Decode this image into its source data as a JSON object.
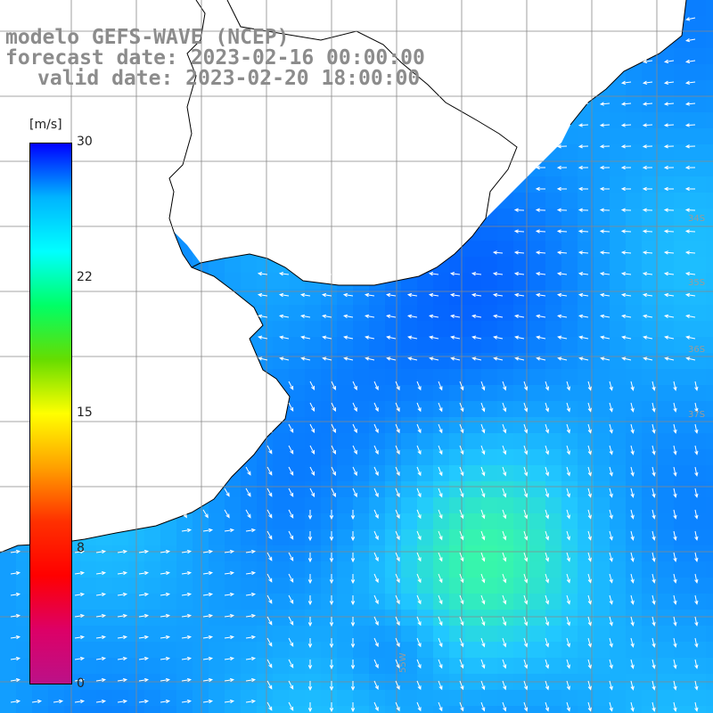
{
  "title": {
    "line1": "modelo GEFS-WAVE (NCEP)",
    "line2": "forecast date: 2023-02-16 00:00:00",
    "line3": "valid date: 2023-02-20 18:00:00"
  },
  "colorbar": {
    "units": "[m/s]",
    "ticks": [
      "30",
      "22",
      "15",
      "8",
      "0"
    ],
    "tick_values": [
      30,
      22,
      15,
      8,
      0
    ],
    "range": [
      0,
      30
    ],
    "colors": [
      "#0000ff",
      "#00b4ff",
      "#00ffff",
      "#00ff66",
      "#66dd00",
      "#ffff00",
      "#ffa000",
      "#ff3000",
      "#ff0000",
      "#dd0066",
      "#bb1188"
    ]
  },
  "map": {
    "lat_labels": [
      "34S",
      "35S",
      "36S",
      "37S"
    ],
    "lon_labels": [
      "55W"
    ],
    "field": "wind speed and direction",
    "land_color": "#ffffff",
    "coast_color": "#000000",
    "grid_color": "#888888"
  }
}
